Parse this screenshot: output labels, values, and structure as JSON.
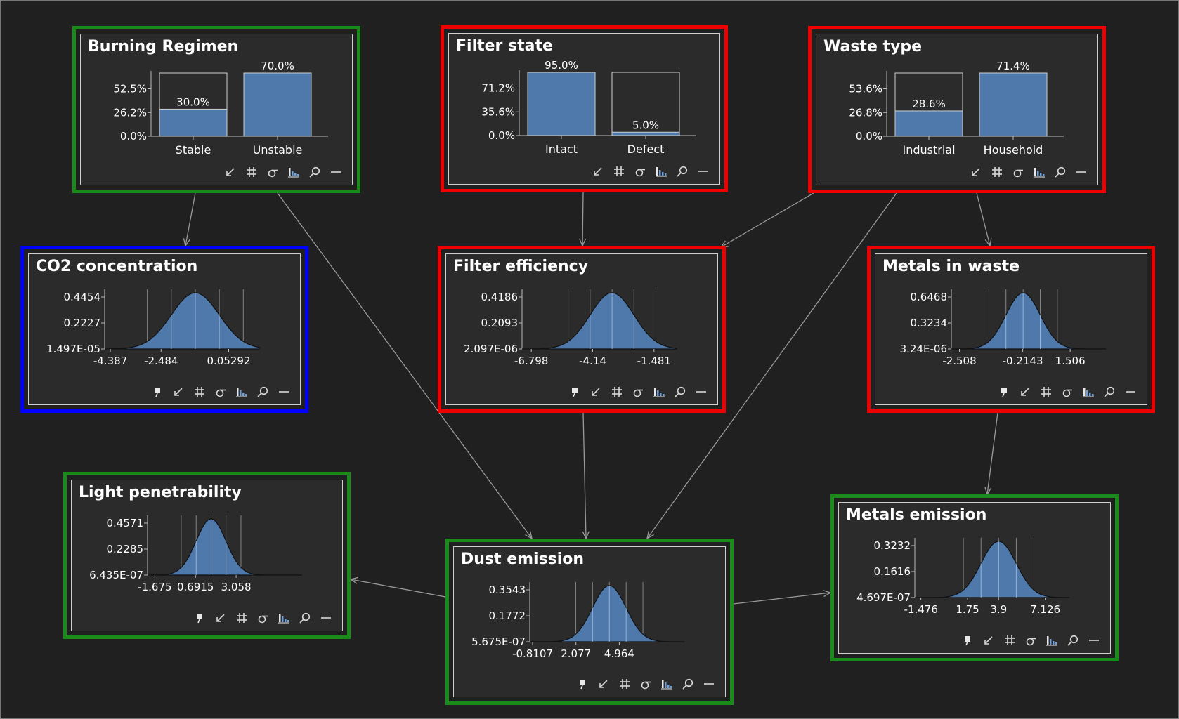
{
  "colors": {
    "background": "#202020",
    "panel": "#2b2b2b",
    "bar_fill": "#4e79aa",
    "curve_fill": "#4e79aa",
    "frame_green": "#1a8a1a",
    "frame_red": "#ee0000",
    "frame_blue": "#0000ff",
    "edge": "#9a9a9a"
  },
  "toolbar_icons": [
    "pin-icon",
    "arrow-in-icon",
    "hash-icon",
    "sigma-icon",
    "bar-chart-icon",
    "zoom-icon",
    "minimize-icon"
  ],
  "nodes": [
    {
      "id": "burning-regimen",
      "title": "Burning Regimen",
      "frame": "green",
      "kind": "discrete",
      "y_ticks": [
        "52.5%",
        "26.2%",
        "0.0%"
      ],
      "states": [
        {
          "label": "Stable",
          "value": 30.0,
          "value_label": "30.0%"
        },
        {
          "label": "Unstable",
          "value": 70.0,
          "value_label": "70.0%"
        }
      ],
      "y_max": 70.0,
      "toolbar": [
        "arrow-in-icon",
        "hash-icon",
        "sigma-icon",
        "bar-chart-icon",
        "zoom-icon",
        "minimize-icon"
      ]
    },
    {
      "id": "filter-state",
      "title": "Filter state",
      "frame": "red",
      "kind": "discrete",
      "y_ticks": [
        "71.2%",
        "35.6%",
        "0.0%"
      ],
      "states": [
        {
          "label": "Intact",
          "value": 95.0,
          "value_label": "95.0%"
        },
        {
          "label": "Defect",
          "value": 5.0,
          "value_label": "5.0%"
        }
      ],
      "y_max": 95.0,
      "toolbar": [
        "arrow-in-icon",
        "hash-icon",
        "sigma-icon",
        "bar-chart-icon",
        "zoom-icon",
        "minimize-icon"
      ]
    },
    {
      "id": "waste-type",
      "title": "Waste type",
      "frame": "red",
      "kind": "discrete",
      "y_ticks": [
        "53.6%",
        "26.8%",
        "0.0%"
      ],
      "states": [
        {
          "label": "Industrial",
          "value": 28.6,
          "value_label": "28.6%"
        },
        {
          "label": "Household",
          "value": 71.4,
          "value_label": "71.4%"
        }
      ],
      "y_max": 71.4,
      "toolbar": [
        "arrow-in-icon",
        "hash-icon",
        "sigma-icon",
        "bar-chart-icon",
        "zoom-icon",
        "minimize-icon"
      ]
    },
    {
      "id": "co2-concentration",
      "title": "CO2 concentration",
      "frame": "blue",
      "kind": "continuous",
      "y_ticks": [
        "0.4454",
        "0.2227",
        "1.497E-05"
      ],
      "x_ticks": [
        "-4.387",
        "-2.484",
        "0.05292"
      ],
      "curve": {
        "x_min": -4.6,
        "x_max": 1.2,
        "mean": -1.2,
        "sd": 0.9,
        "sd_lines": 2
      },
      "toolbar": [
        "pin-icon",
        "arrow-in-icon",
        "hash-icon",
        "sigma-icon",
        "bar-chart-icon",
        "zoom-icon",
        "minimize-icon"
      ]
    },
    {
      "id": "filter-efficiency",
      "title": "Filter efficiency",
      "frame": "red",
      "kind": "continuous",
      "y_ticks": [
        "0.4186",
        "0.2093",
        "2.097E-06"
      ],
      "x_ticks": [
        "-6.798",
        "-4.14",
        "-1.481"
      ],
      "curve": {
        "x_min": -7.2,
        "x_max": -0.5,
        "mean": -3.3,
        "sd": 0.95,
        "sd_lines": 2
      },
      "toolbar": [
        "pin-icon",
        "arrow-in-icon",
        "hash-icon",
        "sigma-icon",
        "bar-chart-icon",
        "zoom-icon",
        "minimize-icon"
      ]
    },
    {
      "id": "metals-in-waste",
      "title": "Metals in waste",
      "frame": "red",
      "kind": "continuous",
      "y_ticks": [
        "0.6468",
        "0.3234",
        "3.24E-06"
      ],
      "x_ticks": [
        "-2.508",
        "-0.2143",
        "1.506"
      ],
      "curve": {
        "x_min": -2.8,
        "x_max": 2.8,
        "mean": -0.2,
        "sd": 0.62,
        "sd_lines": 2
      },
      "toolbar": [
        "pin-icon",
        "arrow-in-icon",
        "hash-icon",
        "sigma-icon",
        "bar-chart-icon",
        "zoom-icon",
        "minimize-icon"
      ]
    },
    {
      "id": "light-penetrability",
      "title": "Light penetrability",
      "frame": "green",
      "kind": "continuous",
      "y_ticks": [
        "0.4571",
        "0.2285",
        "6.435E-07"
      ],
      "x_ticks": [
        "-1.675",
        "0.6915",
        "3.058"
      ],
      "curve": {
        "x_min": -2.1,
        "x_max": 6.9,
        "mean": 1.6,
        "sd": 0.87,
        "sd_lines": 2
      },
      "toolbar": [
        "pin-icon",
        "arrow-in-icon",
        "hash-icon",
        "sigma-icon",
        "bar-chart-icon",
        "zoom-icon",
        "minimize-icon"
      ]
    },
    {
      "id": "dust-emission",
      "title": "Dust emission",
      "frame": "green",
      "kind": "continuous",
      "y_ticks": [
        "0.3543",
        "0.1772",
        "5.675E-07"
      ],
      "x_ticks": [
        "-0.8107",
        "2.077",
        "4.964"
      ],
      "curve": {
        "x_min": -1.0,
        "x_max": 9.3,
        "mean": 4.3,
        "sd": 1.12,
        "sd_lines": 2
      },
      "toolbar": [
        "pin-icon",
        "arrow-in-icon",
        "hash-icon",
        "sigma-icon",
        "bar-chart-icon",
        "zoom-icon",
        "minimize-icon"
      ]
    },
    {
      "id": "metals-emission",
      "title": "Metals emission",
      "frame": "green",
      "kind": "continuous",
      "y_ticks": [
        "0.3232",
        "0.1616",
        "4.697E-07"
      ],
      "x_ticks": [
        "-1.476",
        "1.75",
        "3.9",
        "7.126"
      ],
      "curve": {
        "x_min": -1.9,
        "x_max": 8.8,
        "mean": 3.9,
        "sd": 1.22,
        "sd_lines": 2
      },
      "toolbar": [
        "pin-icon",
        "arrow-in-icon",
        "hash-icon",
        "sigma-icon",
        "bar-chart-icon",
        "zoom-icon",
        "minimize-icon"
      ]
    }
  ],
  "edges": [
    {
      "from": "burning-regimen",
      "to": "co2-concentration"
    },
    {
      "from": "burning-regimen",
      "to": "dust-emission"
    },
    {
      "from": "filter-state",
      "to": "filter-efficiency"
    },
    {
      "from": "waste-type",
      "to": "filter-efficiency"
    },
    {
      "from": "waste-type",
      "to": "dust-emission"
    },
    {
      "from": "waste-type",
      "to": "metals-in-waste"
    },
    {
      "from": "filter-efficiency",
      "to": "dust-emission"
    },
    {
      "from": "metals-in-waste",
      "to": "metals-emission"
    },
    {
      "from": "dust-emission",
      "to": "light-penetrability"
    },
    {
      "from": "dust-emission",
      "to": "metals-emission"
    }
  ]
}
